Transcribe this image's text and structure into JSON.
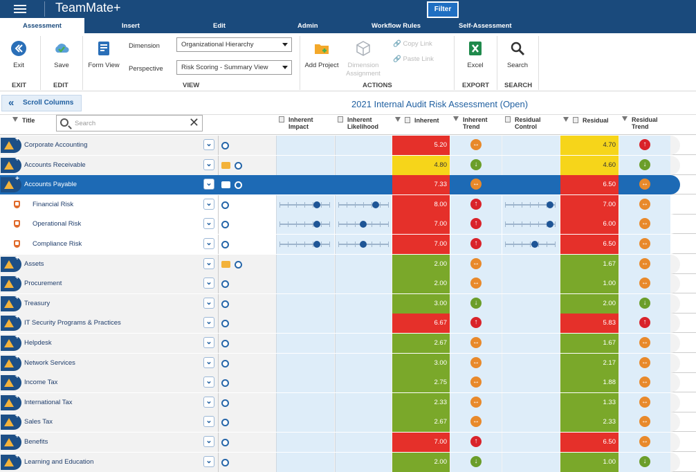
{
  "app": {
    "title": "TeamMate+",
    "filter_label": "Filter"
  },
  "tabs": [
    "Assessment",
    "Insert",
    "Edit",
    "Admin",
    "Workflow Rules",
    "Self-Assessment"
  ],
  "ribbon": {
    "exit_label": "Exit",
    "save_label": "Save",
    "form_view_label": "Form View",
    "dimension_label": "Dimension",
    "dimension_value": "Organizational Hierarchy",
    "perspective_label": "Perspective",
    "perspective_value": "Risk Scoring - Summary View",
    "add_project_label": "Add Project",
    "dimension_assignment_label": "Dimension Assignment",
    "copy_link_label": "Copy Link",
    "paste_link_label": "Paste Link",
    "excel_label": "Excel",
    "search_label": "Search",
    "groups": {
      "exit": "EXIT",
      "edit": "EDIT",
      "view": "VIEW",
      "actions": "ACTIONS",
      "export": "EXPORT",
      "search": "SEARCH"
    }
  },
  "grid": {
    "scroll_columns_label": "Scroll Columns",
    "title": "2021 Internal Audit Risk Assessment (Open)",
    "search_placeholder": "Search",
    "headers": {
      "title": "Title",
      "inherent_impact": "Inherent Impact",
      "inherent_likelihood": "Inherent Likelihood",
      "inherent": "Inherent",
      "inherent_trend": "Inherent Trend",
      "residual_control": "Residual Control",
      "residual": "Residual",
      "residual_trend": "Residual Trend"
    },
    "colors": {
      "red": "#e5302a",
      "yellow": "#f6d51a",
      "green": "#7aa82a",
      "selected": "#1d6ab5"
    },
    "rows": [
      {
        "title": "Corporate Accounting",
        "type": "parent",
        "inherent": "5.20",
        "inherent_color": "red",
        "inherent_trend": "side",
        "residual": "4.70",
        "residual_color": "yellow",
        "residual_trend": "up",
        "share": false
      },
      {
        "title": "Accounts Receivable",
        "type": "parent",
        "inherent": "4.80",
        "inherent_color": "yellow",
        "inherent_trend": "down",
        "residual": "4.60",
        "residual_color": "yellow",
        "residual_trend": "down",
        "share": true
      },
      {
        "title": "Accounts Payable",
        "type": "selected",
        "inherent": "7.33",
        "inherent_color": "red",
        "inherent_trend": "side",
        "residual": "6.50",
        "residual_color": "red",
        "residual_trend": "side",
        "share": true
      },
      {
        "title": "Financial Risk",
        "type": "child",
        "inherent": "8.00",
        "inherent_color": "red",
        "inherent_trend": "up",
        "residual": "7.00",
        "residual_color": "red",
        "residual_trend": "side",
        "impact_slider": 0.75,
        "likelihood_slider": 0.75,
        "control_slider": 0.9
      },
      {
        "title": "Operational Risk",
        "type": "child",
        "inherent": "7.00",
        "inherent_color": "red",
        "inherent_trend": "up",
        "residual": "6.00",
        "residual_color": "red",
        "residual_trend": "side",
        "impact_slider": 0.75,
        "likelihood_slider": 0.5,
        "control_slider": 0.9
      },
      {
        "title": "Compliance Risk",
        "type": "child",
        "inherent": "7.00",
        "inherent_color": "red",
        "inherent_trend": "up",
        "residual": "6.50",
        "residual_color": "red",
        "residual_trend": "side",
        "impact_slider": 0.75,
        "likelihood_slider": 0.5,
        "control_slider": 0.6
      },
      {
        "title": "Assets",
        "type": "parent",
        "inherent": "2.00",
        "inherent_color": "green",
        "inherent_trend": "side",
        "residual": "1.67",
        "residual_color": "green",
        "residual_trend": "side",
        "share": true
      },
      {
        "title": "Procurement",
        "type": "parent",
        "inherent": "2.00",
        "inherent_color": "green",
        "inherent_trend": "side",
        "residual": "1.00",
        "residual_color": "green",
        "residual_trend": "side",
        "share": false
      },
      {
        "title": "Treasury",
        "type": "parent",
        "inherent": "3.00",
        "inherent_color": "green",
        "inherent_trend": "down",
        "residual": "2.00",
        "residual_color": "green",
        "residual_trend": "down",
        "share": false
      },
      {
        "title": "IT Security Programs & Practices",
        "type": "parent",
        "inherent": "6.67",
        "inherent_color": "red",
        "inherent_trend": "up",
        "residual": "5.83",
        "residual_color": "red",
        "residual_trend": "up",
        "share": false
      },
      {
        "title": "Helpdesk",
        "type": "parent",
        "inherent": "2.67",
        "inherent_color": "green",
        "inherent_trend": "side",
        "residual": "1.67",
        "residual_color": "green",
        "residual_trend": "side",
        "share": false
      },
      {
        "title": "Network Services",
        "type": "parent",
        "inherent": "3.00",
        "inherent_color": "green",
        "inherent_trend": "side",
        "residual": "2.17",
        "residual_color": "green",
        "residual_trend": "side",
        "share": false
      },
      {
        "title": "Income Tax",
        "type": "parent",
        "inherent": "2.75",
        "inherent_color": "green",
        "inherent_trend": "side",
        "residual": "1.88",
        "residual_color": "green",
        "residual_trend": "side",
        "share": false
      },
      {
        "title": "International Tax",
        "type": "parent",
        "inherent": "2.33",
        "inherent_color": "green",
        "inherent_trend": "side",
        "residual": "1.33",
        "residual_color": "green",
        "residual_trend": "side",
        "share": false
      },
      {
        "title": "Sales Tax",
        "type": "parent",
        "inherent": "2.67",
        "inherent_color": "green",
        "inherent_trend": "side",
        "residual": "2.33",
        "residual_color": "green",
        "residual_trend": "side",
        "share": false
      },
      {
        "title": "Benefits",
        "type": "parent",
        "inherent": "7.00",
        "inherent_color": "red",
        "inherent_trend": "up",
        "residual": "6.50",
        "residual_color": "red",
        "residual_trend": "side",
        "share": false
      },
      {
        "title": "Learning and Education",
        "type": "parent",
        "inherent": "2.00",
        "inherent_color": "green",
        "inherent_trend": "down",
        "residual": "1.00",
        "residual_color": "green",
        "residual_trend": "down",
        "share": false
      }
    ]
  }
}
